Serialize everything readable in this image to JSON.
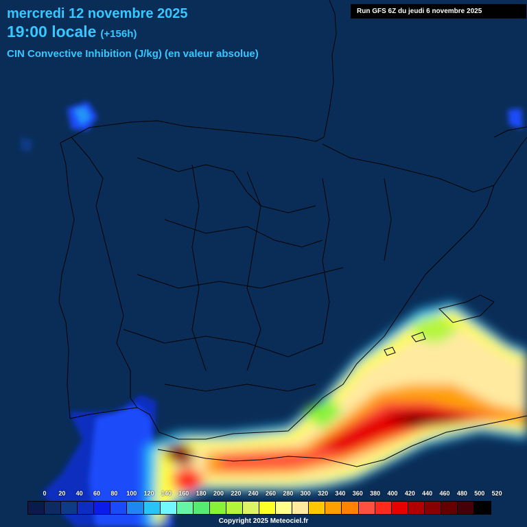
{
  "header": {
    "date": "mercredi 12 novembre 2025",
    "time": "19:00 locale",
    "offset": "(+156h)",
    "parameter": "CIN Convective Inhibition (J/kg) (en valeur absolue)"
  },
  "run_info": "Run GFS 6Z du jeudi 6 novembre 2025",
  "scale": {
    "labels": [
      "0",
      "20",
      "40",
      "60",
      "80",
      "100",
      "120",
      "140",
      "160",
      "180",
      "200",
      "220",
      "240",
      "260",
      "280",
      "300",
      "320",
      "340",
      "360",
      "380",
      "400",
      "420",
      "440",
      "460",
      "480",
      "500",
      "520"
    ],
    "colors": [
      "#0a1a4a",
      "#0d2a62",
      "#0f3a86",
      "#0c2dbf",
      "#0a1bea",
      "#1a4bfa",
      "#1e88f0",
      "#28c4f5",
      "#73f7ff",
      "#66f5a4",
      "#55eb72",
      "#88f237",
      "#b4f53c",
      "#ddf564",
      "#ffff28",
      "#ffff8c",
      "#ffeaa0",
      "#ffc800",
      "#ffa000",
      "#ff8200",
      "#ff5040",
      "#ff2a1e",
      "#e60000",
      "#b00000",
      "#880000",
      "#660000",
      "#460008",
      "#000000"
    ]
  },
  "copyright": "Copyright 2025 Meteociel.fr",
  "colors": {
    "background": "#0a2d57",
    "header_text": "#36c8ff",
    "borders": "#000000"
  }
}
